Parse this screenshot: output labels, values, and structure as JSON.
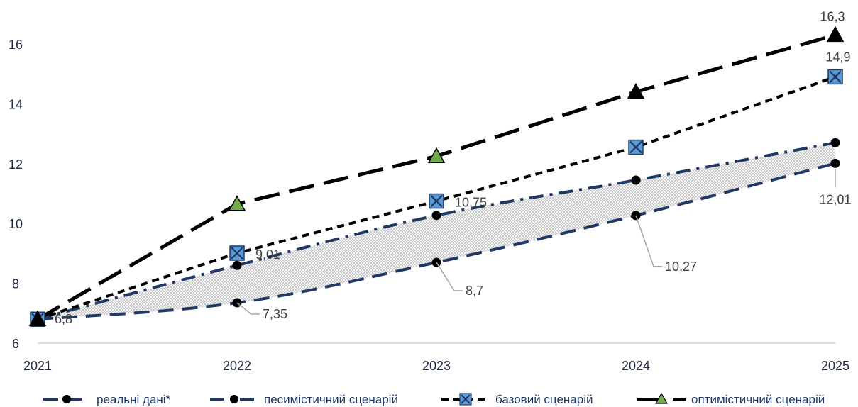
{
  "chart_data": {
    "type": "line",
    "x": [
      "2021",
      "2022",
      "2023",
      "2024",
      "2025"
    ],
    "ylim": [
      6,
      16
    ],
    "yticks": [
      "6",
      "8",
      "10",
      "12",
      "14",
      "16"
    ],
    "series": [
      {
        "name": "реальні дані*",
        "values": [
          6.8,
          7.35,
          8.7,
          10.27,
          12.01
        ],
        "labels": [
          "",
          "7,35",
          "8,7",
          "10,27",
          "12,01"
        ],
        "color": "#1f3864",
        "style": "dashed",
        "marker": "circle"
      },
      {
        "name": "песимістичний сценарій",
        "values": [
          6.8,
          8.6,
          10.27,
          11.45,
          12.7
        ],
        "labels": [
          "",
          "",
          "",
          "",
          ""
        ],
        "color": "#1f3864",
        "style": "dash-dot",
        "marker": "circle"
      },
      {
        "name": "базовий сценарій",
        "values": [
          6.8,
          9.01,
          10.75,
          12.55,
          14.9
        ],
        "labels": [
          "6,8",
          "9,01",
          "10,75",
          "",
          "14,9"
        ],
        "color": "#000000",
        "style": "short-dash",
        "marker": "x-square",
        "marker_color": "#5b9bd5"
      },
      {
        "name": "оптимістичний сценарій",
        "values": [
          6.8,
          10.65,
          12.25,
          14.4,
          16.3
        ],
        "labels": [
          "",
          "",
          "",
          "",
          "16,3"
        ],
        "color": "#000000",
        "style": "long-dash",
        "marker": "triangle",
        "marker_color": "#70ad47"
      }
    ],
    "band": {
      "between": [
        "реальні дані*",
        "песимістичний сценарій"
      ],
      "fill": "#d0d0d0",
      "pattern": "dots"
    },
    "legend_position": "bottom",
    "grid": false
  }
}
